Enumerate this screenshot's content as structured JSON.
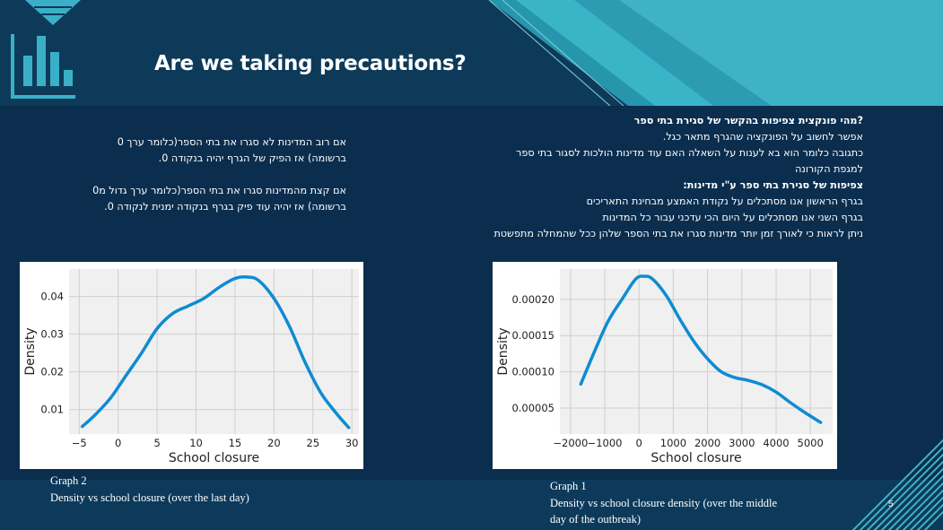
{
  "slide": {
    "title": "Are we taking precautions?",
    "number": "5"
  },
  "right_text": [
    {
      "text": "?מהי פונקצית צפיפות בהקשר של סגירת בתי ספר",
      "bold": true
    },
    {
      "text": "אפשר לחשוב על הפונקציה שהגרף מתאר כגל.",
      "bold": false
    },
    {
      "text": "כתגובה  כלומר הוא בא לענות על השאלה האם עוד מדינות הולכות לסגור בתי ספר",
      "bold": false
    },
    {
      "text": "למגפת הקורונה",
      "bold": false
    },
    {
      "text": "צפיפות של סגירת בתי ספר ע\"י מדינות:",
      "bold": true
    },
    {
      "text": "בגרף הראשון אנו מסתכלים על נקודת האמצע מבחינת התאריכים",
      "bold": false
    },
    {
      "text": "בגרף השני אנו מסתכלים על היום הכי עדכני עבור כל המדינות",
      "bold": false
    },
    {
      "text": "ניתן לראות כי לאורך זמן יותר מדינות סגרו את בתי הספר שלהן ככל שהמחלה מתפשטת",
      "bold": false
    }
  ],
  "left_text": [
    "אם רוב המדינות לא סגרו את בתי הספר(כלומר ערך 0",
    "ברשומה) אז הפיק של הגרף יהיה בנקודה 0.",
    "",
    "אם קצת מהמדינות סגרו את בתי הספר(כלומר ערך גדול מ0",
    "ברשומה) אז יהיה עוד פיק בגרף בנקודה ימנית לנקודה 0."
  ],
  "captions": {
    "left_title": "Graph 2",
    "left_desc": "Density vs school closure (over the last day)",
    "right_title": "Graph 1",
    "right_desc_1": "Density vs school closure density (over the middle",
    "right_desc_2": "day of the outbreak)"
  },
  "colors": {
    "line": "#0f8bd2",
    "plot_bg": "#f0f0f0",
    "grid": "#cfcfcf"
  },
  "chart_data": [
    {
      "type": "line",
      "xlabel": "School closure",
      "ylabel": "Density",
      "xticks": [
        -5,
        0,
        5,
        10,
        15,
        20,
        25,
        30
      ],
      "yticks": [
        0.01,
        0.02,
        0.03,
        0.04
      ],
      "ytick_labels": [
        "0.01",
        "0.02",
        "0.03",
        "0.04"
      ],
      "xticks_labels": [
        "−5",
        "0",
        "5",
        "10",
        "15",
        "20",
        "25",
        "30"
      ],
      "xlim": [
        -6.3,
        30.9
      ],
      "ylim": [
        0.0035,
        0.0473
      ],
      "grid": true,
      "x": [
        -4.6,
        -3,
        -1,
        1,
        3,
        5,
        7,
        9,
        11,
        13,
        15,
        16.5,
        18,
        20,
        22,
        24,
        26,
        28,
        29.6
      ],
      "y": [
        0.0055,
        0.0085,
        0.013,
        0.019,
        0.025,
        0.0315,
        0.0355,
        0.0375,
        0.0395,
        0.0425,
        0.0448,
        0.0452,
        0.0443,
        0.0395,
        0.032,
        0.0225,
        0.0145,
        0.009,
        0.0052
      ]
    },
    {
      "type": "line",
      "xlabel": "School closure",
      "ylabel": "Density",
      "xticks": [
        -2000,
        -1000,
        0,
        1000,
        2000,
        3000,
        4000,
        5000
      ],
      "xticks_labels": [
        "−2000",
        "−1000",
        "0",
        "1000",
        "2000",
        "3000",
        "4000",
        "5000"
      ],
      "yticks": [
        5e-05,
        0.0001,
        0.00015,
        0.0002
      ],
      "ytick_labels": [
        "0.00005",
        "0.00010",
        "0.00015",
        "0.00020"
      ],
      "xlim": [
        -2310,
        5650
      ],
      "ylim": [
        1.4e-05,
        0.000242
      ],
      "grid": true,
      "x": [
        -1700,
        -1300,
        -900,
        -500,
        -100,
        150,
        400,
        800,
        1200,
        1600,
        2000,
        2400,
        2800,
        3200,
        3600,
        4000,
        4400,
        4800,
        5300
      ],
      "y": [
        8.3e-05,
        0.000128,
        0.00017,
        0.0002,
        0.000228,
        0.000232,
        0.000228,
        0.000205,
        0.000172,
        0.000142,
        0.000118,
        0.0001,
        9.2e-05,
        8.8e-05,
        8.2e-05,
        7.2e-05,
        5.8e-05,
        4.5e-05,
        3e-05
      ]
    }
  ]
}
